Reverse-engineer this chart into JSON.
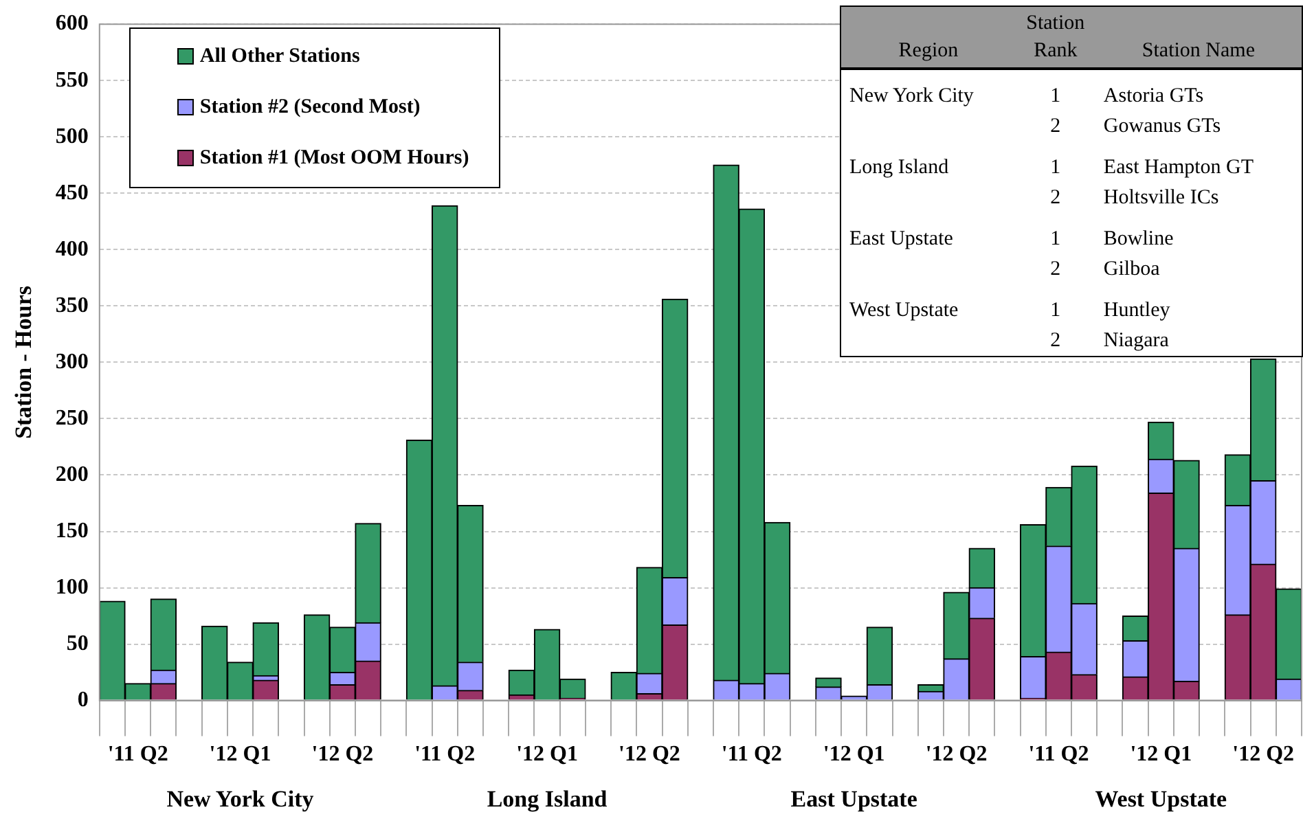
{
  "chart_data": {
    "type": "bar",
    "stacked": true,
    "ylabel": "Station - Hours",
    "ylim": [
      0,
      600
    ],
    "yticks": [
      0,
      50,
      100,
      150,
      200,
      250,
      300,
      350,
      400,
      450,
      500,
      550,
      600
    ],
    "grid": "y",
    "legend": "top left",
    "categories": [
      null,
      "'11 Q2",
      null,
      null,
      null,
      "'12 Q1",
      null,
      null,
      null,
      "'12 Q2",
      null,
      null,
      null,
      "'11 Q2",
      null,
      null,
      null,
      "'12 Q1",
      null,
      null,
      null,
      "'12 Q2",
      null,
      null,
      null,
      "'11 Q2",
      null,
      null,
      null,
      "'12 Q1",
      null,
      null,
      null,
      "'12 Q2",
      null,
      null,
      null,
      "'11 Q2",
      null,
      null,
      null,
      "'12 Q1",
      null,
      null,
      null,
      "'12 Q2",
      null
    ],
    "series": [
      {
        "name": "Station #1 (Most OOM Hours)",
        "color": "#993366",
        "values": [
          0,
          0,
          15,
          null,
          0,
          0,
          18,
          null,
          0,
          14,
          35,
          null,
          0,
          0,
          9,
          null,
          5,
          0,
          2,
          null,
          0,
          6,
          67,
          null,
          0,
          0,
          0,
          null,
          0,
          0,
          0,
          null,
          0,
          0,
          73,
          null,
          2,
          43,
          23,
          null,
          21,
          184,
          17,
          null,
          76,
          121,
          0
        ]
      },
      {
        "name": "Station #2 (Second Most)",
        "color": "#9999ff",
        "values": [
          0,
          0,
          12,
          null,
          0,
          0,
          4,
          null,
          0,
          11,
          34,
          null,
          0,
          13,
          25,
          null,
          0,
          0,
          0,
          null,
          0,
          18,
          42,
          null,
          18,
          15,
          24,
          null,
          12,
          4,
          14,
          null,
          8,
          37,
          27,
          null,
          37,
          94,
          63,
          null,
          32,
          30,
          118,
          null,
          97,
          74,
          19
        ]
      },
      {
        "name": "All Other Stations",
        "color": "#339966",
        "values": [
          88,
          15,
          63,
          null,
          66,
          34,
          47,
          null,
          76,
          40,
          88,
          null,
          231,
          426,
          139,
          null,
          22,
          63,
          17,
          null,
          25,
          94,
          247,
          null,
          457,
          421,
          134,
          null,
          8,
          0,
          51,
          null,
          6,
          59,
          35,
          null,
          117,
          52,
          122,
          null,
          22,
          33,
          78,
          null,
          45,
          108,
          80
        ]
      }
    ],
    "annotations": [
      "New York City",
      "Long Island",
      "East Upstate",
      "West Upstate",
      "Region",
      "Station Rank",
      "Station Name",
      "New York City",
      "1",
      "Astoria GTs",
      "2",
      "Gowanus GTs",
      "Long Island",
      "1",
      "East Hampton GT",
      "2",
      "Holtsville ICs",
      "East Upstate",
      "1",
      "Bowline",
      "2",
      "Gilboa",
      "West Upstate",
      "1",
      "Huntley",
      "2",
      "Niagara"
    ]
  }
}
